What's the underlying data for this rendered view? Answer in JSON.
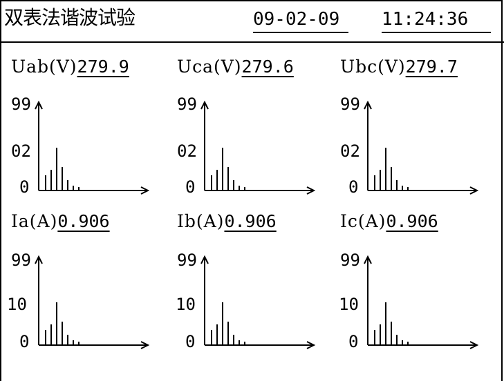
{
  "header": {
    "title": "双表法谐波试验",
    "date": "09-02-09",
    "time": "11:24:36"
  },
  "panels": [
    {
      "label": "Uab(V)",
      "value": "279.9",
      "y_top": "99",
      "y_mid": "02",
      "y_zero": "0",
      "harmonics": [
        0.22,
        0.3,
        0.62,
        0.34,
        0.15,
        0.07,
        0.05
      ]
    },
    {
      "label": "Uca(V)",
      "value": "279.6",
      "y_top": "99",
      "y_mid": "02",
      "y_zero": "0",
      "harmonics": [
        0.22,
        0.3,
        0.62,
        0.34,
        0.15,
        0.07,
        0.05
      ]
    },
    {
      "label": "Ubc(V)",
      "value": "279.7",
      "y_top": "99",
      "y_mid": "02",
      "y_zero": "0",
      "harmonics": [
        0.22,
        0.3,
        0.62,
        0.34,
        0.15,
        0.07,
        0.05
      ]
    },
    {
      "label": "Ia(A)",
      "value": "0.906",
      "y_top": "99",
      "y_mid": "10",
      "y_zero": "0",
      "harmonics": [
        0.22,
        0.3,
        0.62,
        0.34,
        0.15,
        0.07,
        0.05
      ]
    },
    {
      "label": "Ib(A)",
      "value": "0.906",
      "y_top": "99",
      "y_mid": "10",
      "y_zero": "0",
      "harmonics": [
        0.22,
        0.3,
        0.62,
        0.34,
        0.15,
        0.07,
        0.05
      ]
    },
    {
      "label": "Ic(A)",
      "value": "0.906",
      "y_top": "99",
      "y_mid": "10",
      "y_zero": "0",
      "harmonics": [
        0.22,
        0.3,
        0.62,
        0.34,
        0.15,
        0.07,
        0.05
      ]
    }
  ]
}
